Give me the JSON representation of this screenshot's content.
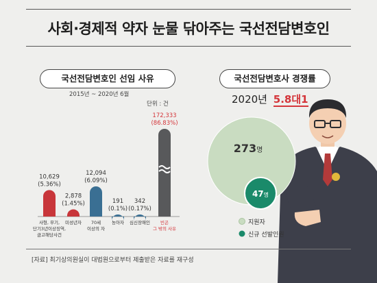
{
  "title": "사회·경제적 약자 눈물 닦아주는 국선전담변호인",
  "left_panel": {
    "heading": "국선전담변호인 선임 사유",
    "period": "2015년 ~ 2020년 6월",
    "unit": "단위 : 건"
  },
  "right_panel": {
    "heading": "국선전담변호사 경쟁률",
    "year_label": "2020년",
    "ratio_label": "5.8대1",
    "big_circle_value": "273",
    "small_circle_value": "47",
    "circle_unit": "명",
    "legend": [
      "지원자",
      "신규 선발인원"
    ]
  },
  "source_note": "[자료] 최기상의원실이 대법원으로부터 제출받은 자료를 재구성",
  "colors": {
    "red": "#c8363a",
    "blue": "#3a6f93",
    "gray": "#58595b",
    "light_green": "#c9dcc1",
    "dark_green": "#1a8a6a",
    "highlight": "#d4353a"
  },
  "chart_data": [
    {
      "type": "bar",
      "title": "국선전담변호인 선임 사유",
      "categories": [
        "사형, 무기, 단기3년이상징역, 금고해당사건",
        "미성년자",
        "70세 이상의 자",
        "농아자",
        "심신장애인",
        "빈곤 그 밖의 사유"
      ],
      "category_labels": [
        [
          "사형, 무기,",
          "단기3년이상징역,",
          "금고해당사건"
        ],
        [
          "미성년자"
        ],
        [
          "70세",
          "이상의 자"
        ],
        [
          "농아자"
        ],
        [
          "심신장애인"
        ],
        [
          "빈곤",
          "그 밖의 사유"
        ]
      ],
      "values": [
        10629,
        2878,
        12094,
        191,
        342,
        172333
      ],
      "value_labels": [
        "10,629",
        "2,878",
        "12,094",
        "191",
        "342",
        "172,333"
      ],
      "percent_labels": [
        "(5.36%)",
        "(1.45%)",
        "(6.09%)",
        "(0.1%)",
        "(0.17%)",
        "(86.83%)"
      ],
      "bar_colors": [
        "#c8363a",
        "#c8363a",
        "#3a6f93",
        "#3a6f93",
        "#3a6f93",
        "#58595b"
      ],
      "broken_axis": true,
      "ylabel": ""
    },
    {
      "type": "bubble",
      "title": "국선전담변호사 경쟁률",
      "series": [
        {
          "name": "지원자",
          "value": 273
        },
        {
          "name": "신규 선발인원",
          "value": 47
        }
      ]
    }
  ]
}
